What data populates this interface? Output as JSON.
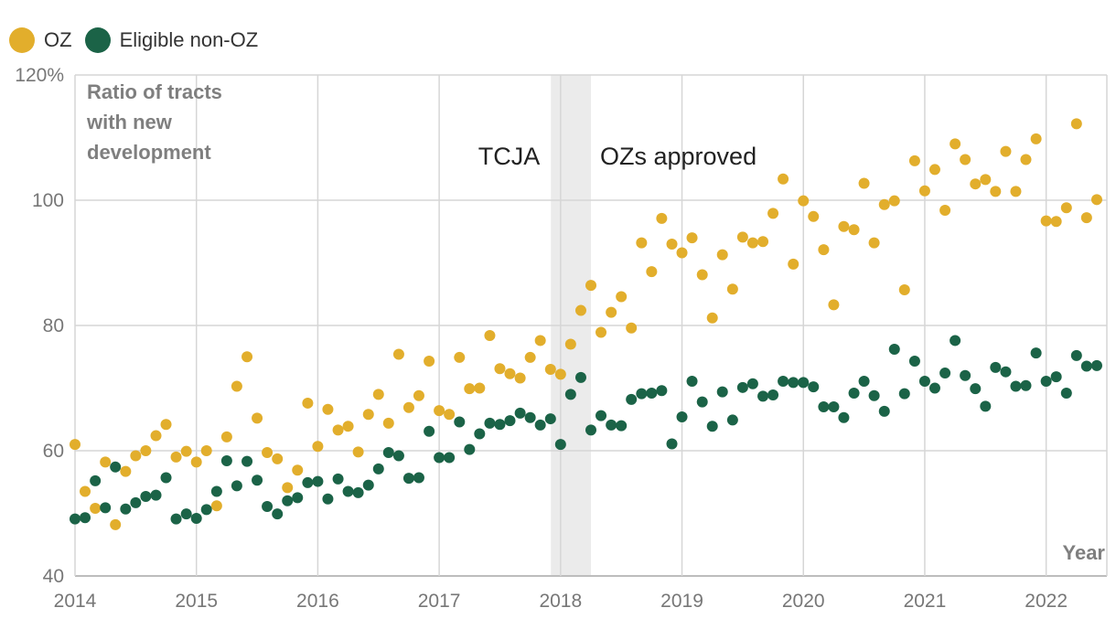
{
  "chart_data": {
    "type": "scatter",
    "title": "",
    "ylabel": "Ratio of tracts with new development",
    "ylabel_lines": [
      "Ratio of tracts",
      "with new",
      "development"
    ],
    "xlabel": "Year",
    "ylim": [
      40,
      120
    ],
    "xlim": [
      2014,
      2022.5
    ],
    "y_ticks": [
      40,
      60,
      80,
      100,
      120
    ],
    "y_tick_labels": [
      "40",
      "60",
      "80",
      "100",
      "120%"
    ],
    "x_ticks": [
      2014,
      2015,
      2016,
      2017,
      2018,
      2019,
      2020,
      2021,
      2022
    ],
    "x_tick_labels": [
      "2014",
      "2015",
      "2016",
      "2017",
      "2018",
      "2019",
      "2020",
      "2021",
      "2022"
    ],
    "grid": true,
    "legend": "top-left",
    "shaded_region": {
      "x_start": 2017.92,
      "x_end": 2018.25,
      "color": "#ebebeb"
    },
    "annotations": [
      {
        "text": "TCJA",
        "x": 2017.92,
        "y": 107,
        "align": "right"
      },
      {
        "text": "OZs approved",
        "x": 2018.25,
        "y": 107,
        "align": "left"
      }
    ],
    "series": [
      {
        "name": "OZ",
        "color": "#e2ae2c",
        "x": [
          2014.0,
          2014.083,
          2014.167,
          2014.25,
          2014.333,
          2014.417,
          2014.5,
          2014.583,
          2014.667,
          2014.75,
          2014.833,
          2014.917,
          2015.0,
          2015.083,
          2015.167,
          2015.25,
          2015.333,
          2015.417,
          2015.5,
          2015.583,
          2015.667,
          2015.75,
          2015.833,
          2015.917,
          2016.0,
          2016.083,
          2016.167,
          2016.25,
          2016.333,
          2016.417,
          2016.5,
          2016.583,
          2016.667,
          2016.75,
          2016.833,
          2016.917,
          2017.0,
          2017.083,
          2017.167,
          2017.25,
          2017.333,
          2017.417,
          2017.5,
          2017.583,
          2017.667,
          2017.75,
          2017.833,
          2017.917,
          2018.0,
          2018.083,
          2018.167,
          2018.25,
          2018.333,
          2018.417,
          2018.5,
          2018.583,
          2018.667,
          2018.75,
          2018.833,
          2018.917,
          2019.0,
          2019.083,
          2019.167,
          2019.25,
          2019.333,
          2019.417,
          2019.5,
          2019.583,
          2019.667,
          2019.75,
          2019.833,
          2019.917,
          2020.0,
          2020.083,
          2020.167,
          2020.25,
          2020.333,
          2020.417,
          2020.5,
          2020.583,
          2020.667,
          2020.75,
          2020.833,
          2020.917,
          2021.0,
          2021.083,
          2021.167,
          2021.25,
          2021.333,
          2021.417,
          2021.5,
          2021.583,
          2021.667,
          2021.75,
          2021.833,
          2021.917,
          2022.0,
          2022.083,
          2022.167,
          2022.25,
          2022.333,
          2022.417
        ],
        "values": [
          61,
          53.5,
          50.8,
          58.2,
          48.2,
          56.7,
          59.2,
          60,
          62.4,
          64.2,
          59,
          59.9,
          58.2,
          60,
          51.2,
          62.2,
          70.3,
          75,
          65.2,
          59.7,
          58.7,
          54.1,
          56.9,
          67.6,
          60.7,
          66.6,
          63.3,
          63.9,
          59.8,
          65.8,
          69,
          64.4,
          75.4,
          66.9,
          68.8,
          74.3,
          66.4,
          65.8,
          74.9,
          69.9,
          70,
          78.4,
          73.1,
          72.3,
          71.6,
          74.9,
          77.6,
          73,
          72.2,
          77,
          82.4,
          86.4,
          78.9,
          82.1,
          84.6,
          79.6,
          93.2,
          88.6,
          97.1,
          93,
          91.6,
          94,
          88.1,
          81.2,
          91.3,
          85.8,
          94.1,
          93.2,
          93.4,
          97.9,
          103.4,
          89.8,
          99.9,
          97.4,
          92.1,
          83.3,
          95.8,
          95.3,
          102.7,
          93.2,
          99.3,
          99.9,
          85.7,
          106.3,
          101.5,
          104.9,
          98.4,
          109,
          106.5,
          102.6,
          103.3,
          101.4,
          107.8,
          101.4,
          106.5,
          109.8,
          96.7,
          96.6,
          98.8,
          112.2,
          97.2,
          100.1
        ]
      },
      {
        "name": "Eligible non-OZ",
        "color": "#1b6347",
        "x": [
          2014.0,
          2014.083,
          2014.167,
          2014.25,
          2014.333,
          2014.417,
          2014.5,
          2014.583,
          2014.667,
          2014.75,
          2014.833,
          2014.917,
          2015.0,
          2015.083,
          2015.167,
          2015.25,
          2015.333,
          2015.417,
          2015.5,
          2015.583,
          2015.667,
          2015.75,
          2015.833,
          2015.917,
          2016.0,
          2016.083,
          2016.167,
          2016.25,
          2016.333,
          2016.417,
          2016.5,
          2016.583,
          2016.667,
          2016.75,
          2016.833,
          2016.917,
          2017.0,
          2017.083,
          2017.167,
          2017.25,
          2017.333,
          2017.417,
          2017.5,
          2017.583,
          2017.667,
          2017.75,
          2017.833,
          2017.917,
          2018.0,
          2018.083,
          2018.167,
          2018.25,
          2018.333,
          2018.417,
          2018.5,
          2018.583,
          2018.667,
          2018.75,
          2018.833,
          2018.917,
          2019.0,
          2019.083,
          2019.167,
          2019.25,
          2019.333,
          2019.417,
          2019.5,
          2019.583,
          2019.667,
          2019.75,
          2019.833,
          2019.917,
          2020.0,
          2020.083,
          2020.167,
          2020.25,
          2020.333,
          2020.417,
          2020.5,
          2020.583,
          2020.667,
          2020.75,
          2020.833,
          2020.917,
          2021.0,
          2021.083,
          2021.167,
          2021.25,
          2021.333,
          2021.417,
          2021.5,
          2021.583,
          2021.667,
          2021.75,
          2021.833,
          2021.917,
          2022.0,
          2022.083,
          2022.167,
          2022.25,
          2022.333,
          2022.417
        ],
        "values": [
          49.1,
          49.3,
          55.2,
          50.9,
          57.4,
          50.7,
          51.7,
          52.7,
          52.9,
          55.7,
          49.1,
          49.9,
          49.2,
          50.6,
          53.5,
          58.4,
          54.4,
          58.3,
          55.3,
          51.1,
          49.9,
          52,
          52.5,
          54.9,
          55.1,
          52.3,
          55.5,
          53.5,
          53.3,
          54.5,
          57.1,
          59.7,
          59.2,
          55.6,
          55.7,
          63.1,
          58.9,
          58.9,
          64.6,
          60.2,
          62.7,
          64.4,
          64.2,
          64.8,
          66,
          65.3,
          64.1,
          65.1,
          61,
          69,
          71.7,
          63.3,
          65.6,
          64.1,
          64,
          68.2,
          69.1,
          69.2,
          69.6,
          61.1,
          65.4,
          71.1,
          67.8,
          63.9,
          69.4,
          64.9,
          70.1,
          70.7,
          68.7,
          68.9,
          71.1,
          70.9,
          70.9,
          70.2,
          67,
          67,
          65.3,
          69.2,
          71.1,
          68.8,
          66.3,
          76.2,
          69.1,
          74.3,
          71.1,
          70,
          72.4,
          77.6,
          72,
          69.9,
          67.1,
          73.3,
          72.6,
          70.3,
          70.4,
          75.6,
          71.1,
          71.8,
          69.2,
          75.2,
          73.5,
          73.6
        ]
      }
    ]
  }
}
